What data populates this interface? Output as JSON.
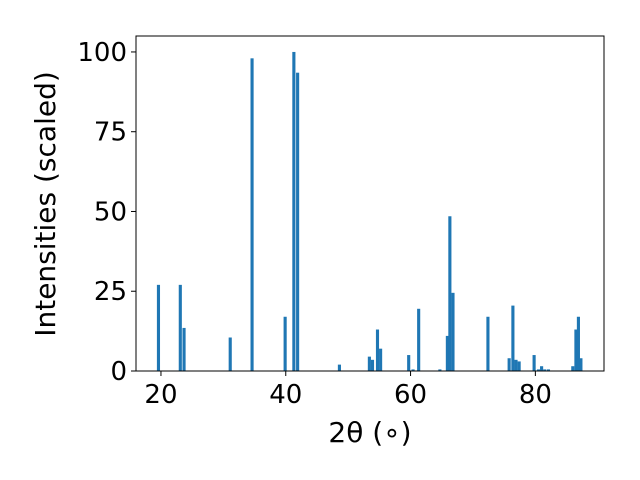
{
  "chart_data": {
    "type": "bar",
    "xlabel": "2θ (∘)",
    "ylabel": "Intensities (scaled)",
    "xlim": [
      16.0,
      91.0
    ],
    "ylim": [
      0,
      105
    ],
    "xticks": [
      20,
      40,
      60,
      80
    ],
    "yticks": [
      0,
      25,
      50,
      75,
      100
    ],
    "grid": false,
    "bar_color": "#1f77b4",
    "bar_width": 0.5,
    "x": [
      19.6,
      23.1,
      23.7,
      31.1,
      34.6,
      39.9,
      41.3,
      41.9,
      48.6,
      53.4,
      53.9,
      54.7,
      55.2,
      59.7,
      60.4,
      61.3,
      64.7,
      65.9,
      66.3,
      66.8,
      72.4,
      75.8,
      76.4,
      76.9,
      77.4,
      79.8,
      80.5,
      81.0,
      81.5,
      82.1,
      86.0,
      86.5,
      86.9,
      87.3
    ],
    "values": [
      27,
      27,
      13.5,
      10.5,
      98,
      17,
      100,
      93.5,
      2,
      4.5,
      3.5,
      13,
      7,
      5,
      0.5,
      19.5,
      0.5,
      11,
      48.5,
      24.5,
      17,
      4,
      20.5,
      3.5,
      3,
      5,
      0.5,
      1.5,
      0.5,
      0.5,
      1.5,
      13,
      17,
      4
    ]
  }
}
